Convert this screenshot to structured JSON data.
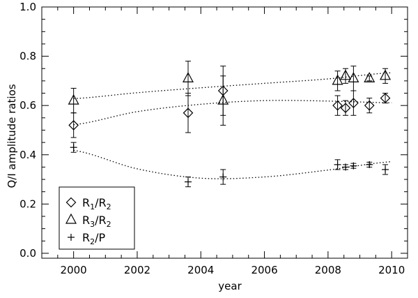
{
  "chart_data": {
    "type": "scatter",
    "title": "",
    "xlabel": "year",
    "ylabel": "Q/I amplitude ratios",
    "xlim": [
      1999,
      2010.5
    ],
    "ylim": [
      -0.02,
      1.0
    ],
    "x_ticks": [
      2000,
      2002,
      2004,
      2006,
      2008,
      2010
    ],
    "x_tick_labels": [
      "2000",
      "2002",
      "2004",
      "2006",
      "2008",
      "2010"
    ],
    "y_ticks": [
      0.0,
      0.2,
      0.4,
      0.6,
      0.8,
      1.0
    ],
    "y_tick_labels": [
      "0.0",
      "0.2",
      "0.4",
      "0.6",
      "0.8",
      "1.0"
    ],
    "grid": false,
    "legend_position": "bottom-left",
    "series": [
      {
        "marker": "diamond",
        "legend": {
          "main": "R",
          "sub": "1",
          "mid": "/R",
          "sub2": "2"
        },
        "points": [
          {
            "x": 2000.0,
            "y": 0.52,
            "err": 0.05
          },
          {
            "x": 2003.6,
            "y": 0.57,
            "err": 0.08
          },
          {
            "x": 2004.7,
            "y": 0.66,
            "err": 0.1
          },
          {
            "x": 2008.3,
            "y": 0.6,
            "err": 0.04
          },
          {
            "x": 2008.55,
            "y": 0.59,
            "err": 0.03
          },
          {
            "x": 2008.8,
            "y": 0.61,
            "err": 0.05
          },
          {
            "x": 2009.3,
            "y": 0.6,
            "err": 0.03
          },
          {
            "x": 2009.8,
            "y": 0.63,
            "err": 0.02
          }
        ],
        "fit": [
          [
            2000.0,
            0.522
          ],
          [
            2002.0,
            0.575
          ],
          [
            2004.0,
            0.605
          ],
          [
            2006.0,
            0.62
          ],
          [
            2008.0,
            0.618
          ],
          [
            2010.0,
            0.611
          ]
        ]
      },
      {
        "marker": "triangle",
        "legend": {
          "main": "R",
          "sub": "3",
          "mid": "/R",
          "sub2": "2"
        },
        "points": [
          {
            "x": 2000.0,
            "y": 0.62,
            "err": 0.05
          },
          {
            "x": 2003.6,
            "y": 0.71,
            "err": 0.07
          },
          {
            "x": 2004.7,
            "y": 0.62,
            "err": 0.1
          },
          {
            "x": 2008.3,
            "y": 0.7,
            "err": 0.04
          },
          {
            "x": 2008.55,
            "y": 0.72,
            "err": 0.03
          },
          {
            "x": 2008.8,
            "y": 0.71,
            "err": 0.05
          },
          {
            "x": 2009.3,
            "y": 0.71,
            "err": 0.01
          },
          {
            "x": 2009.8,
            "y": 0.72,
            "err": 0.03
          }
        ],
        "fit": [
          [
            2000.0,
            0.628
          ],
          [
            2002.0,
            0.652
          ],
          [
            2004.0,
            0.672
          ],
          [
            2006.0,
            0.69
          ],
          [
            2008.0,
            0.708
          ],
          [
            2010.0,
            0.733
          ]
        ]
      },
      {
        "marker": "plus",
        "legend": {
          "main": "R",
          "sub": "2",
          "mid": "/P",
          "sub2": ""
        },
        "points": [
          {
            "x": 2000.0,
            "y": 0.43,
            "err": 0.02
          },
          {
            "x": 2003.6,
            "y": 0.29,
            "err": 0.02
          },
          {
            "x": 2004.7,
            "y": 0.31,
            "err": 0.03
          },
          {
            "x": 2008.3,
            "y": 0.36,
            "err": 0.02
          },
          {
            "x": 2008.55,
            "y": 0.35,
            "err": 0.01
          },
          {
            "x": 2008.8,
            "y": 0.355,
            "err": 0.01
          },
          {
            "x": 2009.3,
            "y": 0.36,
            "err": 0.01
          },
          {
            "x": 2009.8,
            "y": 0.34,
            "err": 0.02
          }
        ],
        "fit": [
          [
            2000.0,
            0.418
          ],
          [
            2002.0,
            0.343
          ],
          [
            2004.0,
            0.305
          ],
          [
            2006.0,
            0.31
          ],
          [
            2008.0,
            0.338
          ],
          [
            2010.0,
            0.372
          ]
        ]
      }
    ]
  }
}
